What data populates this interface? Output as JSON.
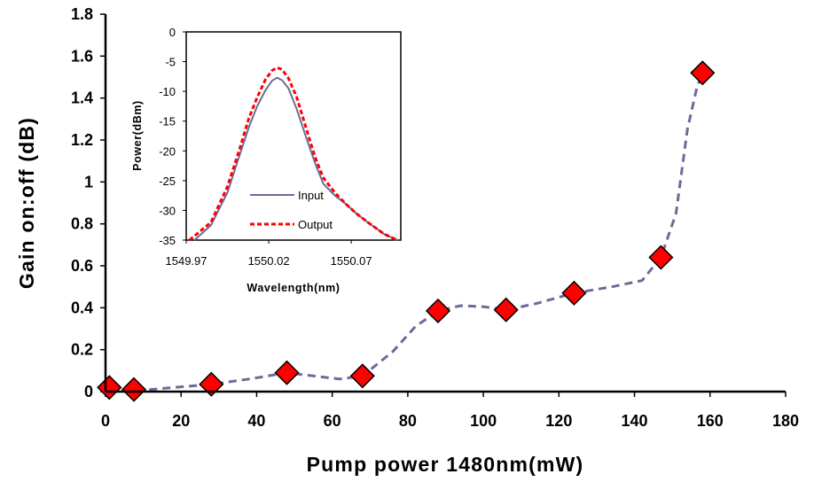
{
  "chart_data": [
    {
      "type": "scatter",
      "title": "",
      "xlabel": "Pump power 1480nm(mW)",
      "ylabel": "Gain on:off (dB)",
      "xlim": [
        0,
        180
      ],
      "ylim": [
        0,
        1.8
      ],
      "xticks": [
        "0",
        "20",
        "40",
        "60",
        "80",
        "100",
        "120",
        "140",
        "160",
        "180"
      ],
      "yticks": [
        "0",
        "0.2",
        "0.4",
        "0.6",
        "0.8",
        "1",
        "1.2",
        "1.4",
        "1.6",
        "1.8"
      ],
      "grid": false,
      "series": [
        {
          "marker": "diamond",
          "color": "#ff0000",
          "x": [
            1,
            7.5,
            28,
            48,
            68,
            88,
            106,
            124,
            147,
            158
          ],
          "y": [
            0.02,
            0.01,
            0.035,
            0.09,
            0.075,
            0.385,
            0.39,
            0.47,
            0.64,
            1.52
          ]
        }
      ],
      "trend_line": {
        "style": "dashed",
        "color": "#6b6b9a",
        "x": [
          1,
          7.5,
          12,
          18,
          28,
          38,
          48,
          55,
          62,
          68,
          76,
          82,
          88,
          94,
          100,
          106,
          114,
          124,
          134,
          142,
          147,
          151,
          154,
          156.5,
          158
        ],
        "y": [
          0.01,
          0.01,
          0.01,
          0.02,
          0.035,
          0.06,
          0.09,
          0.075,
          0.06,
          0.075,
          0.19,
          0.31,
          0.385,
          0.41,
          0.405,
          0.39,
          0.42,
          0.47,
          0.5,
          0.53,
          0.64,
          0.85,
          1.25,
          1.45,
          1.52
        ]
      }
    },
    {
      "type": "line",
      "title": "",
      "xlabel": "Wavelength(nm)",
      "ylabel": "Power(dBm)",
      "xlim": [
        1549.97,
        1550.1
      ],
      "ylim": [
        -35,
        0
      ],
      "xticks": [
        "1549.97",
        "1550.02",
        "1550.07"
      ],
      "yticks": [
        "0",
        "-5",
        "-10",
        "-15",
        "-20",
        "-25",
        "-30",
        "-35"
      ],
      "legend_position": "bottom-left",
      "series": [
        {
          "name": "Input",
          "style": "solid",
          "color": "#6b6b9a",
          "x": [
            1549.975,
            1549.985,
            1549.995,
            1550.002,
            1550.008,
            1550.013,
            1550.018,
            1550.022,
            1550.025,
            1550.028,
            1550.032,
            1550.037,
            1550.043,
            1550.048,
            1550.053,
            1550.06,
            1550.067,
            1550.073,
            1550.08,
            1550.09,
            1550.098
          ],
          "y": [
            -35,
            -32.5,
            -27,
            -21,
            -16,
            -12.5,
            -9.8,
            -8.2,
            -7.7,
            -8.1,
            -9.5,
            -13,
            -18,
            -22,
            -25.5,
            -27.5,
            -29,
            -30.5,
            -32,
            -34,
            -35
          ]
        },
        {
          "name": "Output",
          "style": "dashed",
          "color": "#ff0000",
          "x": [
            1549.972,
            1549.985,
            1549.995,
            1550.002,
            1550.008,
            1550.013,
            1550.018,
            1550.022,
            1550.025,
            1550.028,
            1550.032,
            1550.037,
            1550.043,
            1550.048,
            1550.053,
            1550.06,
            1550.067,
            1550.073,
            1550.08,
            1550.09,
            1550.098
          ],
          "y": [
            -35,
            -32,
            -26,
            -20,
            -14.5,
            -11,
            -8,
            -6.5,
            -6,
            -6.3,
            -7.8,
            -11,
            -16.5,
            -21,
            -24.5,
            -27,
            -29,
            -30.5,
            -32,
            -34,
            -35
          ]
        }
      ]
    }
  ]
}
